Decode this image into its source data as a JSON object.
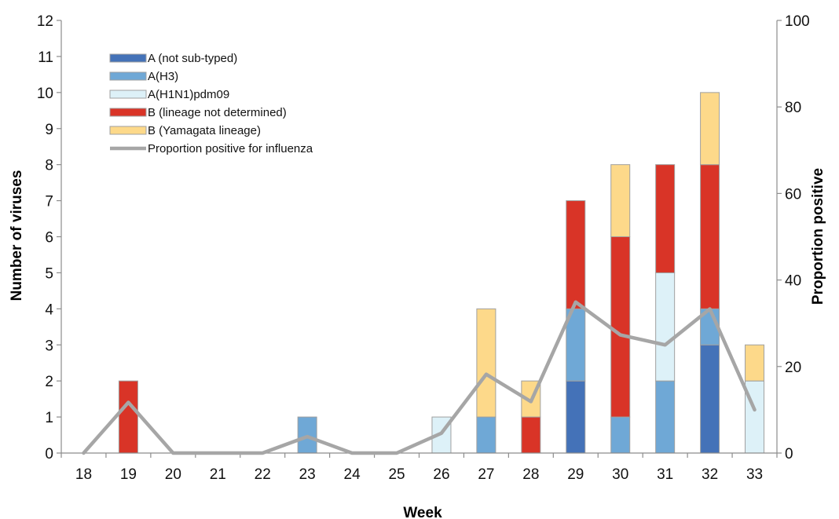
{
  "chart_data": {
    "type": "bar",
    "stacked": true,
    "title": "",
    "xlabel": "Week",
    "ylabel": "Number of viruses",
    "y2label": "Proportion positive",
    "ylim": [
      0,
      12
    ],
    "y2lim": [
      0,
      100
    ],
    "yticks": [
      "0",
      "1",
      "2",
      "3",
      "4",
      "5",
      "6",
      "7",
      "8",
      "9",
      "10",
      "11",
      "12"
    ],
    "y2ticks": [
      "0",
      "20",
      "40",
      "60",
      "80",
      "100"
    ],
    "categories": [
      "18",
      "19",
      "20",
      "21",
      "22",
      "23",
      "24",
      "25",
      "26",
      "27",
      "28",
      "29",
      "30",
      "31",
      "32",
      "33"
    ],
    "series": [
      {
        "name": "A (not sub-typed)",
        "color": "#4472b8",
        "values": [
          0,
          0,
          0,
          0,
          0,
          0,
          0,
          0,
          0,
          0,
          0,
          2,
          0,
          0,
          3,
          0
        ]
      },
      {
        "name": "A(H3)",
        "color": "#6fa8d6",
        "values": [
          0,
          0,
          0,
          0,
          0,
          1,
          0,
          0,
          0,
          1,
          0,
          2,
          1,
          2,
          1,
          0
        ]
      },
      {
        "name": "A(H1N1)pdm09",
        "color": "#ddf1f8",
        "values": [
          0,
          0,
          0,
          0,
          0,
          0,
          0,
          0,
          1,
          0,
          0,
          0,
          0,
          3,
          0,
          2
        ]
      },
      {
        "name": "B (lineage not determined)",
        "color": "#d93427",
        "values": [
          0,
          2,
          0,
          0,
          0,
          0,
          0,
          0,
          0,
          0,
          1,
          3,
          5,
          3,
          4,
          0
        ]
      },
      {
        "name": "B (Yamagata lineage)",
        "color": "#fdd98a",
        "values": [
          0,
          0,
          0,
          0,
          0,
          0,
          0,
          0,
          0,
          3,
          1,
          0,
          2,
          0,
          2,
          1
        ]
      }
    ],
    "line": {
      "name": "Proportion positive for influenza",
      "color": "#a6a6a6",
      "axis": "right",
      "values": [
        0,
        11.7,
        0,
        0,
        0,
        3.8,
        0,
        0,
        4.6,
        18.2,
        11.9,
        34.9,
        27.3,
        25,
        33.3,
        10
      ]
    },
    "legend_position": "top-left",
    "grid": false
  }
}
